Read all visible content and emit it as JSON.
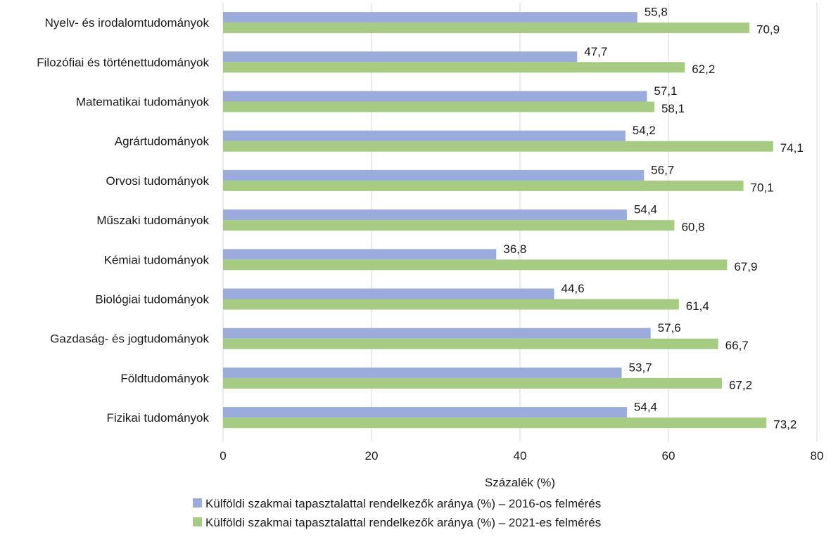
{
  "chart_data": {
    "type": "bar",
    "orientation": "horizontal",
    "categories": [
      "Nyelv- és irodalomtudományok",
      "Filozófiai és történettudományok",
      "Matematikai tudományok",
      "Agrártudományok",
      "Orvosi tudományok",
      "Műszaki tudományok",
      "Kémiai tudományok",
      "Biológiai tudományok",
      "Gazdaság- és jogtudományok",
      "Földtudományok",
      "Fizikai tudományok"
    ],
    "series": [
      {
        "name": "Külföldi szakmai tapasztalattal rendelkezők aránya (%) – 2016-os felmérés",
        "color": "#9aabdc",
        "values": [
          55.8,
          47.7,
          57.1,
          54.2,
          56.7,
          54.4,
          36.8,
          44.6,
          57.6,
          53.7,
          54.4
        ],
        "value_labels": [
          "55,8",
          "47,7",
          "57,1",
          "54,2",
          "56,7",
          "54,4",
          "36,8",
          "44,6",
          "57,6",
          "53,7",
          "54,4"
        ]
      },
      {
        "name": "Külföldi szakmai tapasztalattal rendelkezők aránya (%) – 2021-es felmérés",
        "color": "#a6cc83",
        "values": [
          70.9,
          62.2,
          58.1,
          74.1,
          70.1,
          60.8,
          67.9,
          61.4,
          66.7,
          67.2,
          73.2
        ],
        "value_labels": [
          "70,9",
          "62,2",
          "58,1",
          "74,1",
          "70,1",
          "60,8",
          "67,9",
          "61,4",
          "66,7",
          "67,2",
          "73,2"
        ]
      }
    ],
    "xlabel": "Százalék (%)",
    "xlim": [
      0,
      80
    ],
    "xticks": [
      0,
      20,
      40,
      60,
      80
    ],
    "xtick_labels": [
      "0",
      "20",
      "40",
      "60",
      "80"
    ],
    "grid": "vertical",
    "gridline_color": "#d9d9d9",
    "legend_position": "bottom"
  }
}
